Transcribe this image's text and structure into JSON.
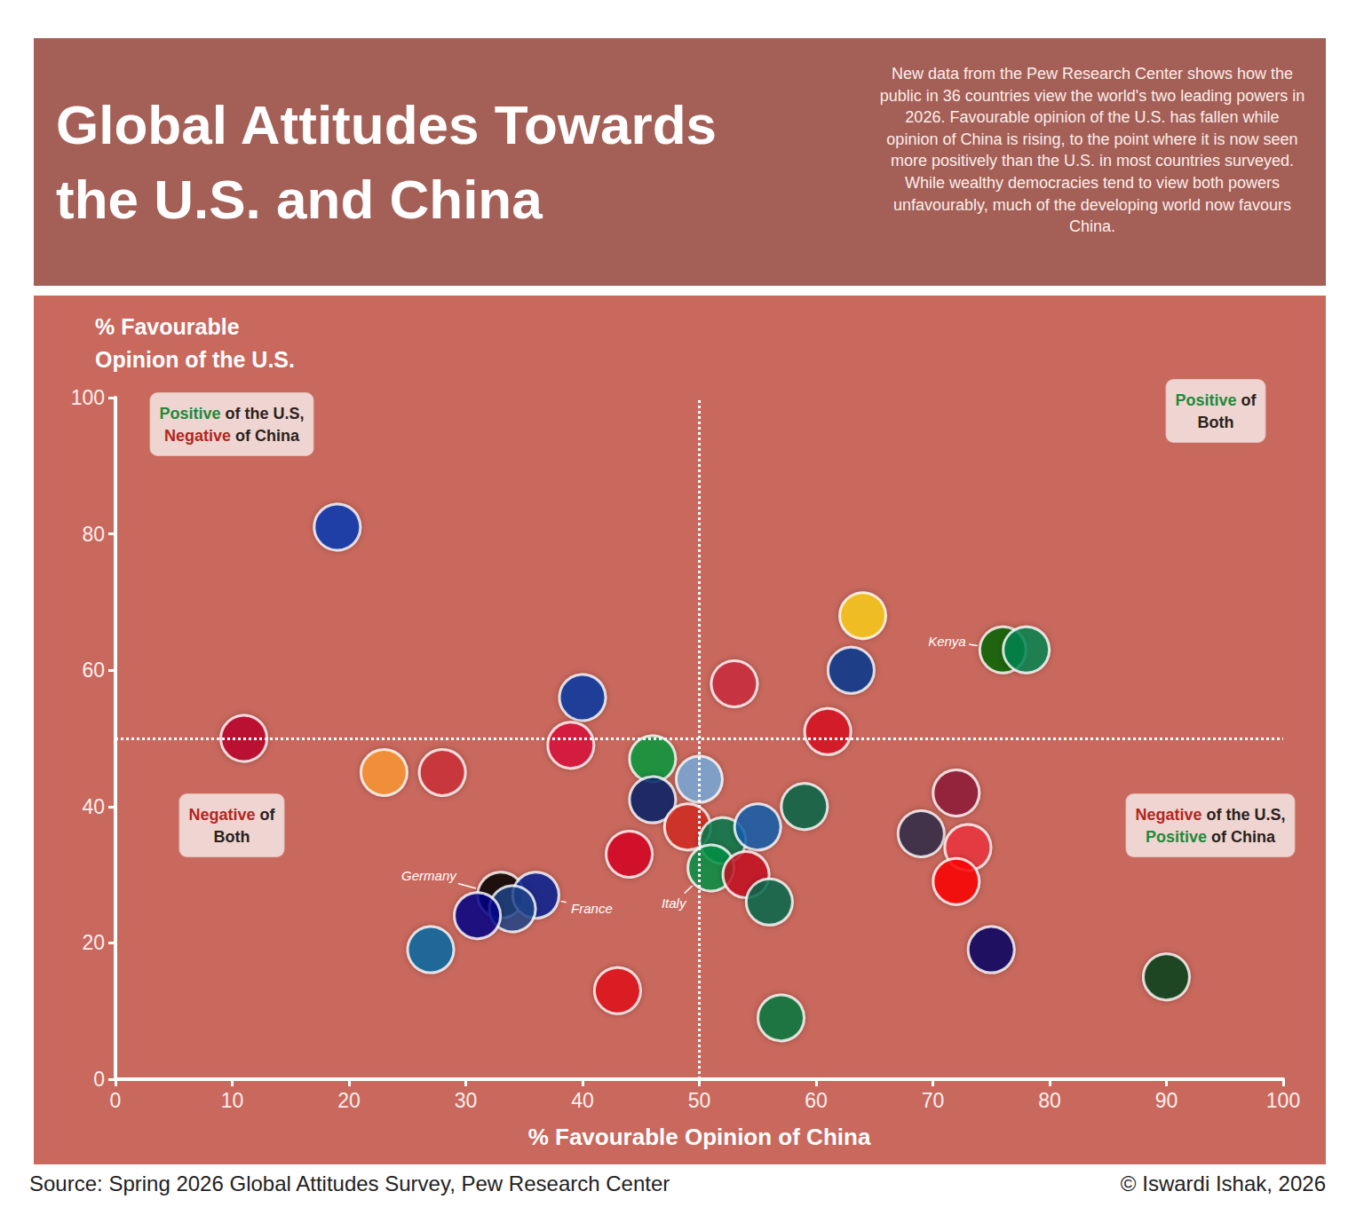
{
  "chart_data": {
    "type": "scatter",
    "title": "Global Attitudes Towards the U.S. and China",
    "subtitle": "New data from the Pew Research Center shows how the public in 36 countries view the world's two leading powers in 2026. Favourable opinion of the U.S. has fallen while opinion of China is rising, to the point where it is now seen more positively than the U.S. in most countries surveyed. While wealthy democracies tend to view both powers unfavourably, much of the developing world now favours China.",
    "source": "Source: Spring 2026 Global Attitudes Survey, Pew Research Center",
    "credit": "© Iswardi Ishak, 2026",
    "x_label": "% Favourable Opinion of China",
    "y_label": "% Favourable Opinion of the U.S.",
    "x": [
      19,
      11,
      23,
      28,
      40,
      39,
      46,
      50,
      46,
      49,
      52,
      55,
      59,
      44,
      51,
      54,
      56,
      33,
      36,
      34,
      31,
      27,
      43,
      57,
      53,
      64,
      63,
      61,
      76,
      78,
      72,
      69,
      73,
      72,
      75,
      90
    ],
    "values": [
      81,
      50,
      45,
      45,
      56,
      49,
      47,
      44,
      41,
      37,
      35,
      37,
      40,
      33,
      31,
      30,
      26,
      27,
      27,
      25,
      24,
      19,
      13,
      9,
      58,
      68,
      60,
      51,
      63,
      63,
      42,
      36,
      34,
      29,
      19,
      15
    ],
    "colors": [
      "#0038b8",
      "#bc002d",
      "#ff9933",
      "#cd2e3a",
      "#0038a8",
      "#dc143c",
      "#009c3b",
      "#74acdf",
      "#012169",
      "#d52b1e",
      "#007a4d",
      "#0d5eaf",
      "#006847",
      "#d80621",
      "#009246",
      "#c60b1e",
      "#006a4e",
      "#000000",
      "#002395",
      "#21468b",
      "#00008b",
      "#006aa7",
      "#e30a17",
      "#007a3d",
      "#cd2a3e",
      "#fcd116",
      "#003893",
      "#d91023",
      "#006600",
      "#008751",
      "#8d153a",
      "#2d2a4a",
      "#ef3340",
      "#ff0000",
      "#010066",
      "#01411c"
    ],
    "marker": "circle",
    "xlim": [
      0,
      100
    ],
    "xticks": [
      0,
      10,
      20,
      30,
      40,
      50,
      60,
      70,
      80,
      90,
      100
    ],
    "ylim": [
      0,
      100
    ],
    "yticks": [
      0,
      20,
      40,
      60,
      80,
      100
    ],
    "grid": false,
    "reference_lines": {
      "x": 50,
      "y": 50
    },
    "annotations": [
      {
        "text": "Kenya",
        "x": 76,
        "y": 63
      },
      {
        "text": "Germany",
        "x": 33,
        "y": 27
      },
      {
        "text": "France",
        "x": 36,
        "y": 27
      },
      {
        "text": "Italy",
        "x": 51,
        "y": 31
      }
    ],
    "quadrant_labels": {
      "top_left": [
        {
          "text": "Positive",
          "color": "#1e8a3a"
        },
        {
          "text": " of the U.S, "
        },
        {
          "text": "Negative",
          "color": "#b3261e"
        },
        {
          "text": " of China"
        }
      ],
      "top_right": [
        {
          "text": "Positive",
          "color": "#1e8a3a"
        },
        {
          "text": " of Both"
        }
      ],
      "bottom_left": [
        {
          "text": "Negative",
          "color": "#b3261e"
        },
        {
          "text": " of Both"
        }
      ],
      "bottom_right": [
        {
          "text": "Negative",
          "color": "#b3261e"
        },
        {
          "text": " of the U.S, "
        },
        {
          "text": "Positive",
          "color": "#1e8a3a"
        },
        {
          "text": " of China"
        }
      ]
    }
  }
}
